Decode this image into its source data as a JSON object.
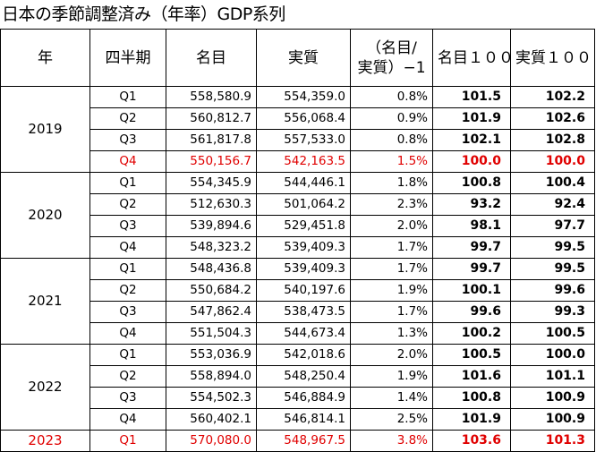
{
  "title": "日本の季節調整済み（年率）GDP系列",
  "headers": {
    "year": "年",
    "quarter": "四半期",
    "nominal": "名目",
    "real": "実質",
    "ratio_line1": "（名目/",
    "ratio_line2": "実質）−1",
    "nominal_index": "名目１００",
    "real_index": "実質１００"
  },
  "highlight_color": "#e00000",
  "years": [
    {
      "year": "2019",
      "rows": [
        {
          "q": "Q1",
          "nominal": "558,580.9",
          "real": "554,359.0",
          "ratio": "0.8%",
          "nominal_index": "101.5",
          "real_index": "102.2",
          "highlight": false
        },
        {
          "q": "Q2",
          "nominal": "560,812.7",
          "real": "556,068.4",
          "ratio": "0.9%",
          "nominal_index": "101.9",
          "real_index": "102.6",
          "highlight": false
        },
        {
          "q": "Q3",
          "nominal": "561,817.8",
          "real": "557,533.0",
          "ratio": "0.8%",
          "nominal_index": "102.1",
          "real_index": "102.8",
          "highlight": false
        },
        {
          "q": "Q4",
          "nominal": "550,156.7",
          "real": "542,163.5",
          "ratio": "1.5%",
          "nominal_index": "100.0",
          "real_index": "100.0",
          "highlight": true
        }
      ]
    },
    {
      "year": "2020",
      "rows": [
        {
          "q": "Q1",
          "nominal": "554,345.9",
          "real": "544,446.1",
          "ratio": "1.8%",
          "nominal_index": "100.8",
          "real_index": "100.4",
          "highlight": false
        },
        {
          "q": "Q2",
          "nominal": "512,630.3",
          "real": "501,064.2",
          "ratio": "2.3%",
          "nominal_index": "93.2",
          "real_index": "92.4",
          "highlight": false
        },
        {
          "q": "Q3",
          "nominal": "539,894.6",
          "real": "529,451.8",
          "ratio": "2.0%",
          "nominal_index": "98.1",
          "real_index": "97.7",
          "highlight": false
        },
        {
          "q": "Q4",
          "nominal": "548,323.2",
          "real": "539,409.3",
          "ratio": "1.7%",
          "nominal_index": "99.7",
          "real_index": "99.5",
          "highlight": false
        }
      ]
    },
    {
      "year": "2021",
      "rows": [
        {
          "q": "Q1",
          "nominal": "548,436.8",
          "real": "539,409.3",
          "ratio": "1.7%",
          "nominal_index": "99.7",
          "real_index": "99.5",
          "highlight": false
        },
        {
          "q": "Q2",
          "nominal": "550,684.2",
          "real": "540,197.6",
          "ratio": "1.9%",
          "nominal_index": "100.1",
          "real_index": "99.6",
          "highlight": false
        },
        {
          "q": "Q3",
          "nominal": "547,862.4",
          "real": "538,473.5",
          "ratio": "1.7%",
          "nominal_index": "99.6",
          "real_index": "99.3",
          "highlight": false
        },
        {
          "q": "Q4",
          "nominal": "551,504.3",
          "real": "544,673.4",
          "ratio": "1.3%",
          "nominal_index": "100.2",
          "real_index": "100.5",
          "highlight": false
        }
      ]
    },
    {
      "year": "2022",
      "rows": [
        {
          "q": "Q1",
          "nominal": "553,036.9",
          "real": "542,018.6",
          "ratio": "2.0%",
          "nominal_index": "100.5",
          "real_index": "100.0",
          "highlight": false
        },
        {
          "q": "Q2",
          "nominal": "558,894.0",
          "real": "548,250.4",
          "ratio": "1.9%",
          "nominal_index": "101.6",
          "real_index": "101.1",
          "highlight": false
        },
        {
          "q": "Q3",
          "nominal": "554,502.3",
          "real": "546,884.9",
          "ratio": "1.4%",
          "nominal_index": "100.8",
          "real_index": "100.9",
          "highlight": false
        },
        {
          "q": "Q4",
          "nominal": "560,402.1",
          "real": "546,814.1",
          "ratio": "2.5%",
          "nominal_index": "101.9",
          "real_index": "100.9",
          "highlight": false
        }
      ]
    },
    {
      "year": "2023",
      "rows": [
        {
          "q": "Q1",
          "nominal": "570,080.0",
          "real": "548,967.5",
          "ratio": "3.8%",
          "nominal_index": "103.6",
          "real_index": "101.3",
          "highlight": true
        }
      ]
    }
  ]
}
